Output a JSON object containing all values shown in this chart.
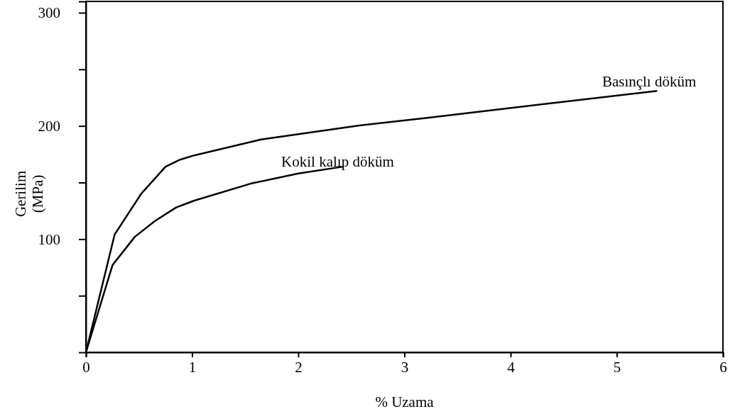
{
  "chart_data": {
    "type": "line",
    "xlabel": "% Uzama",
    "ylabel": "Gerilim (MPa)",
    "xlim": [
      0,
      6
    ],
    "xticks": [
      0,
      1,
      2,
      3,
      4,
      5,
      6
    ],
    "ylim": [
      0,
      310
    ],
    "yticks": [
      {
        "value": 50,
        "label": null
      },
      100,
      {
        "value": 150,
        "label": null
      },
      200,
      {
        "value": 250,
        "label": null
      },
      300
    ],
    "grid": false,
    "legend": false,
    "marker": "none",
    "line_style": "solid",
    "series": [
      {
        "name": "Basınçlı döküm",
        "color": "#000000",
        "x": [
          0,
          0.27,
          0.52,
          0.75,
          0.88,
          1.02,
          1.65,
          2.54,
          3.2,
          5.38
        ],
        "values": [
          0,
          104,
          140,
          164,
          170,
          174,
          188,
          200,
          207,
          231
        ]
      },
      {
        "name": "Kokil kalıp döküm",
        "color": "#000000",
        "x": [
          0,
          0.25,
          0.46,
          0.65,
          0.85,
          1.02,
          1.55,
          2.0,
          2.42
        ],
        "values": [
          0,
          77,
          102,
          116,
          128,
          134,
          149,
          158,
          164
        ]
      }
    ]
  }
}
